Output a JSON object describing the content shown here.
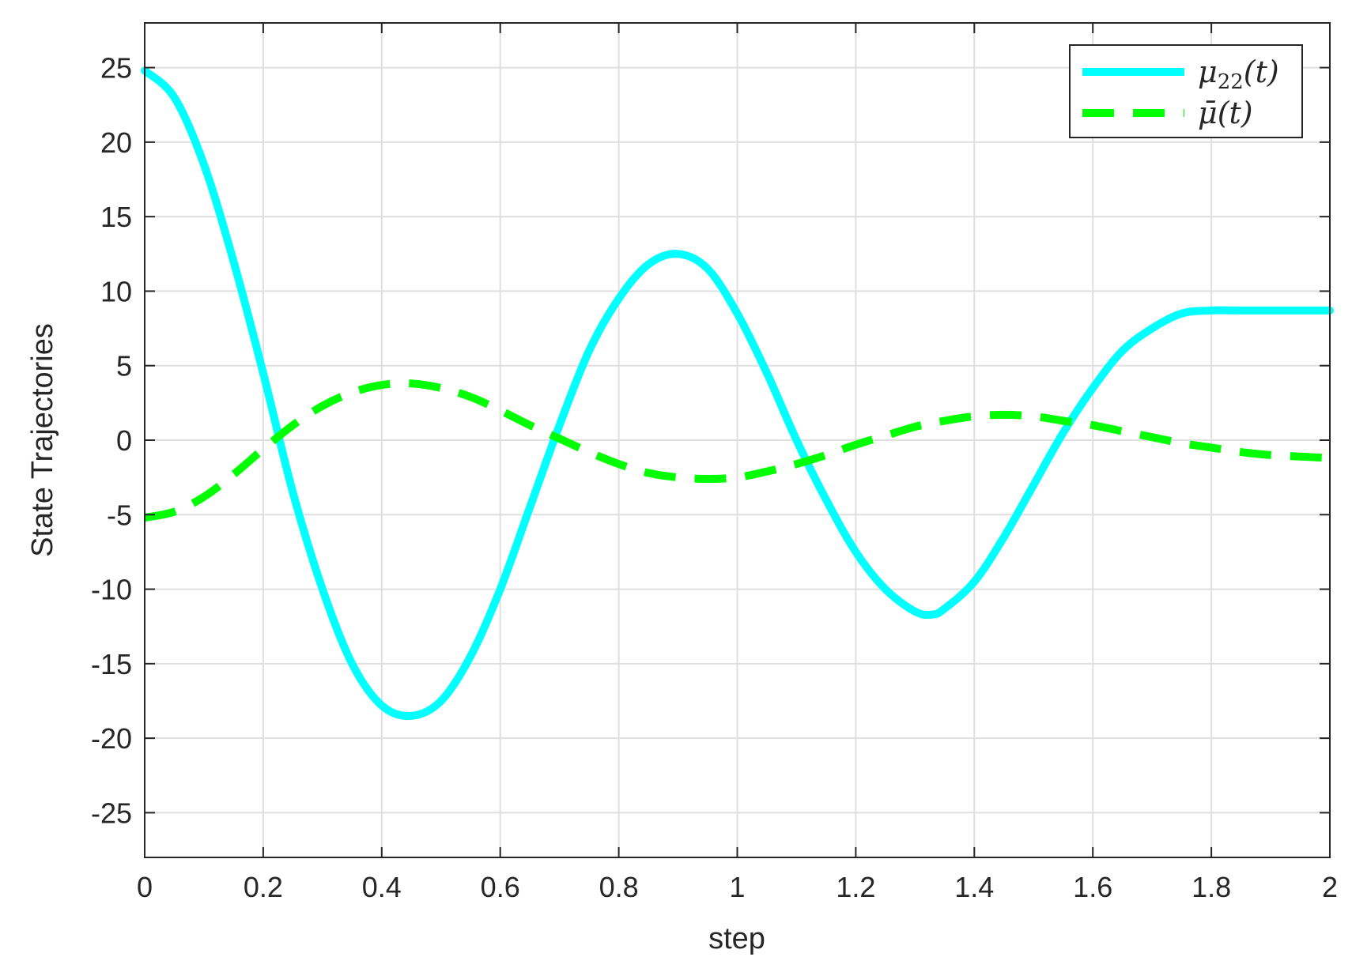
{
  "chart_data": {
    "type": "line",
    "title": "",
    "xlabel": "step",
    "ylabel": "State Trajectories",
    "xlim": [
      0,
      2
    ],
    "ylim": [
      -28,
      28
    ],
    "xticks": [
      0,
      0.2,
      0.4,
      0.6,
      0.8,
      1,
      1.2,
      1.4,
      1.6,
      1.8,
      2
    ],
    "xtick_labels": [
      "0",
      "0.2",
      "0.4",
      "0.6",
      "0.8",
      "1",
      "1.2",
      "1.4",
      "1.6",
      "1.8",
      "2"
    ],
    "yticks": [
      25,
      20,
      15,
      10,
      5,
      0,
      -5,
      -10,
      -15,
      -20,
      -25
    ],
    "ytick_labels": [
      "25",
      "20",
      "15",
      "10",
      "5",
      "0",
      "-5",
      "-10",
      "-15",
      "-20",
      "-25"
    ],
    "grid": true,
    "legend_position": "top-right",
    "series": [
      {
        "name": "μ22(t)",
        "legend_base": "μ",
        "legend_sub": "22",
        "legend_suffix": "(t)",
        "color": "#00FFFF",
        "style": "solid",
        "x": [
          0,
          0.05,
          0.1,
          0.15,
          0.2,
          0.25,
          0.3,
          0.35,
          0.4,
          0.45,
          0.5,
          0.55,
          0.6,
          0.65,
          0.7,
          0.75,
          0.8,
          0.85,
          0.9,
          0.95,
          1.0,
          1.05,
          1.1,
          1.15,
          1.2,
          1.25,
          1.3,
          1.33,
          1.35,
          1.4,
          1.45,
          1.5,
          1.55,
          1.6,
          1.65,
          1.7,
          1.75,
          1.8,
          1.85,
          1.9,
          1.95,
          2.0
        ],
        "y": [
          24.8,
          23.0,
          18.5,
          12.0,
          4.5,
          -3.5,
          -10.0,
          -15.0,
          -17.8,
          -18.5,
          -17.5,
          -14.5,
          -10.0,
          -4.5,
          1.0,
          6.0,
          9.5,
          11.8,
          12.5,
          11.5,
          8.5,
          4.5,
          0.0,
          -4.0,
          -7.5,
          -10.0,
          -11.5,
          -11.7,
          -11.3,
          -9.5,
          -6.5,
          -3.0,
          0.5,
          3.5,
          6.0,
          7.5,
          8.5,
          8.7,
          8.7,
          8.7,
          8.7,
          8.7
        ]
      },
      {
        "name": "μ̄(t)",
        "legend_base": "μ̄",
        "legend_sub": "",
        "legend_suffix": "(t)",
        "color": "#00FF00",
        "style": "dashed",
        "x": [
          0,
          0.05,
          0.1,
          0.15,
          0.2,
          0.25,
          0.3,
          0.35,
          0.4,
          0.45,
          0.5,
          0.55,
          0.6,
          0.65,
          0.7,
          0.75,
          0.8,
          0.85,
          0.9,
          0.95,
          1.0,
          1.05,
          1.1,
          1.15,
          1.2,
          1.25,
          1.3,
          1.35,
          1.4,
          1.45,
          1.5,
          1.55,
          1.6,
          1.65,
          1.7,
          1.75,
          1.8,
          1.85,
          1.9,
          1.95,
          2.0
        ],
        "y": [
          -5.2,
          -4.8,
          -3.8,
          -2.3,
          -0.6,
          1.0,
          2.3,
          3.2,
          3.7,
          3.8,
          3.5,
          2.9,
          2.0,
          1.0,
          0.1,
          -0.8,
          -1.6,
          -2.2,
          -2.5,
          -2.6,
          -2.5,
          -2.1,
          -1.6,
          -1.0,
          -0.3,
          0.3,
          0.9,
          1.3,
          1.6,
          1.7,
          1.6,
          1.3,
          1.0,
          0.6,
          0.2,
          -0.2,
          -0.5,
          -0.8,
          -1.0,
          -1.1,
          -1.2
        ]
      }
    ]
  }
}
